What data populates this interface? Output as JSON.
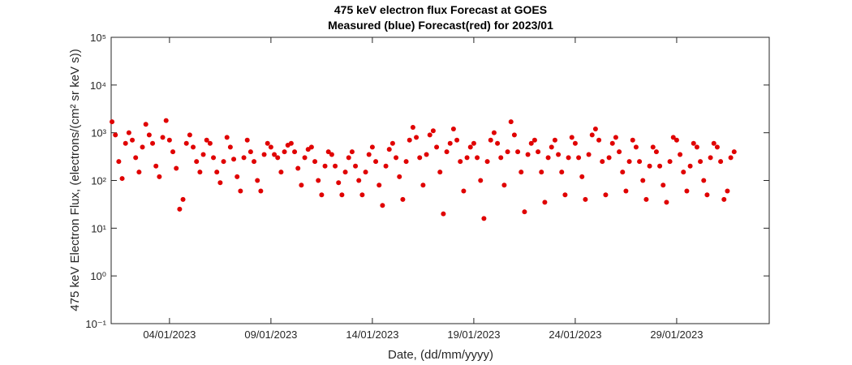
{
  "chart_data": {
    "type": "scatter",
    "title": "475 keV electron flux Forecast at GOES",
    "subtitle": "Measured (blue) Forecast(red) for 2023/01",
    "x_label": "Date, (dd/mm/yyyy)",
    "y_label": "475 keV Electron Flux, (electrons/(cm² sr keV s))",
    "log_y": true,
    "grid": false,
    "xlim": [
      "2023-01-01T03:00Z",
      "2023-02-02T13:30Z"
    ],
    "xticks": [
      {
        "value": "2023-01-04T00:00Z",
        "label": "04/01/2023"
      },
      {
        "value": "2023-01-09T00:00Z",
        "label": "09/01/2023"
      },
      {
        "value": "2023-01-14T00:00Z",
        "label": "14/01/2023"
      },
      {
        "value": "2023-01-19T00:00Z",
        "label": "19/01/2023"
      },
      {
        "value": "2023-01-24T00:00Z",
        "label": "24/01/2023"
      },
      {
        "value": "2023-01-29T00:00Z",
        "label": "29/01/2023"
      }
    ],
    "ylim": [
      0.1,
      100000
    ],
    "yticks": [
      {
        "value": 0.1,
        "label": "10⁻¹"
      },
      {
        "value": 1,
        "label": "10⁰"
      },
      {
        "value": 10,
        "label": "10¹"
      },
      {
        "value": 100,
        "label": "10²"
      },
      {
        "value": 1000,
        "label": "10³"
      },
      {
        "value": 10000,
        "label": "10⁴"
      },
      {
        "value": 100000,
        "label": "10⁵"
      }
    ],
    "series": [
      {
        "color": "#e00000",
        "x": [
          "2023-01-01T04:00Z",
          "2023-01-01T08:00Z",
          "2023-01-01T12:00Z",
          "2023-01-01T16:00Z",
          "2023-01-01T20:00Z",
          "2023-01-02T00:00Z",
          "2023-01-02T04:00Z",
          "2023-01-02T08:00Z",
          "2023-01-02T12:00Z",
          "2023-01-02T16:00Z",
          "2023-01-02T20:00Z",
          "2023-01-03T00:00Z",
          "2023-01-03T04:00Z",
          "2023-01-03T08:00Z",
          "2023-01-03T12:00Z",
          "2023-01-03T16:00Z",
          "2023-01-03T20:00Z",
          "2023-01-04T00:00Z",
          "2023-01-04T04:00Z",
          "2023-01-04T08:00Z",
          "2023-01-04T12:00Z",
          "2023-01-04T16:00Z",
          "2023-01-04T20:00Z",
          "2023-01-05T00:00Z",
          "2023-01-05T04:00Z",
          "2023-01-05T08:00Z",
          "2023-01-05T12:00Z",
          "2023-01-05T16:00Z",
          "2023-01-05T20:00Z",
          "2023-01-06T00:00Z",
          "2023-01-06T04:00Z",
          "2023-01-06T08:00Z",
          "2023-01-06T12:00Z",
          "2023-01-06T16:00Z",
          "2023-01-06T20:00Z",
          "2023-01-07T00:00Z",
          "2023-01-07T04:00Z",
          "2023-01-07T08:00Z",
          "2023-01-07T12:00Z",
          "2023-01-07T16:00Z",
          "2023-01-07T20:00Z",
          "2023-01-08T00:00Z",
          "2023-01-08T04:00Z",
          "2023-01-08T08:00Z",
          "2023-01-08T12:00Z",
          "2023-01-08T16:00Z",
          "2023-01-08T20:00Z",
          "2023-01-09T00:00Z",
          "2023-01-09T04:00Z",
          "2023-01-09T08:00Z",
          "2023-01-09T12:00Z",
          "2023-01-09T16:00Z",
          "2023-01-09T20:00Z",
          "2023-01-10T00:00Z",
          "2023-01-10T04:00Z",
          "2023-01-10T08:00Z",
          "2023-01-10T12:00Z",
          "2023-01-10T16:00Z",
          "2023-01-10T20:00Z",
          "2023-01-11T00:00Z",
          "2023-01-11T04:00Z",
          "2023-01-11T08:00Z",
          "2023-01-11T12:00Z",
          "2023-01-11T16:00Z",
          "2023-01-11T20:00Z",
          "2023-01-12T00:00Z",
          "2023-01-12T04:00Z",
          "2023-01-12T08:00Z",
          "2023-01-12T12:00Z",
          "2023-01-12T16:00Z",
          "2023-01-12T20:00Z",
          "2023-01-13T00:00Z",
          "2023-01-13T04:00Z",
          "2023-01-13T08:00Z",
          "2023-01-13T12:00Z",
          "2023-01-13T16:00Z",
          "2023-01-13T20:00Z",
          "2023-01-14T00:00Z",
          "2023-01-14T04:00Z",
          "2023-01-14T08:00Z",
          "2023-01-14T12:00Z",
          "2023-01-14T16:00Z",
          "2023-01-14T20:00Z",
          "2023-01-15T00:00Z",
          "2023-01-15T04:00Z",
          "2023-01-15T08:00Z",
          "2023-01-15T12:00Z",
          "2023-01-15T16:00Z",
          "2023-01-15T20:00Z",
          "2023-01-16T00:00Z",
          "2023-01-16T04:00Z",
          "2023-01-16T08:00Z",
          "2023-01-16T12:00Z",
          "2023-01-16T16:00Z",
          "2023-01-16T20:00Z",
          "2023-01-17T00:00Z",
          "2023-01-17T04:00Z",
          "2023-01-17T08:00Z",
          "2023-01-17T12:00Z",
          "2023-01-17T16:00Z",
          "2023-01-17T20:00Z",
          "2023-01-18T00:00Z",
          "2023-01-18T04:00Z",
          "2023-01-18T08:00Z",
          "2023-01-18T12:00Z",
          "2023-01-18T16:00Z",
          "2023-01-18T20:00Z",
          "2023-01-19T00:00Z",
          "2023-01-19T04:00Z",
          "2023-01-19T08:00Z",
          "2023-01-19T12:00Z",
          "2023-01-19T16:00Z",
          "2023-01-19T20:00Z",
          "2023-01-20T00:00Z",
          "2023-01-20T04:00Z",
          "2023-01-20T08:00Z",
          "2023-01-20T12:00Z",
          "2023-01-20T16:00Z",
          "2023-01-20T20:00Z",
          "2023-01-21T00:00Z",
          "2023-01-21T04:00Z",
          "2023-01-21T08:00Z",
          "2023-01-21T12:00Z",
          "2023-01-21T16:00Z",
          "2023-01-21T20:00Z",
          "2023-01-22T00:00Z",
          "2023-01-22T04:00Z",
          "2023-01-22T08:00Z",
          "2023-01-22T12:00Z",
          "2023-01-22T16:00Z",
          "2023-01-22T20:00Z",
          "2023-01-23T00:00Z",
          "2023-01-23T04:00Z",
          "2023-01-23T08:00Z",
          "2023-01-23T12:00Z",
          "2023-01-23T16:00Z",
          "2023-01-23T20:00Z",
          "2023-01-24T00:00Z",
          "2023-01-24T04:00Z",
          "2023-01-24T08:00Z",
          "2023-01-24T12:00Z",
          "2023-01-24T16:00Z",
          "2023-01-24T20:00Z",
          "2023-01-25T00:00Z",
          "2023-01-25T04:00Z",
          "2023-01-25T08:00Z",
          "2023-01-25T12:00Z",
          "2023-01-25T16:00Z",
          "2023-01-25T20:00Z",
          "2023-01-26T00:00Z",
          "2023-01-26T04:00Z",
          "2023-01-26T08:00Z",
          "2023-01-26T12:00Z",
          "2023-01-26T16:00Z",
          "2023-01-26T20:00Z",
          "2023-01-27T00:00Z",
          "2023-01-27T04:00Z",
          "2023-01-27T08:00Z",
          "2023-01-27T12:00Z",
          "2023-01-27T16:00Z",
          "2023-01-27T20:00Z",
          "2023-01-28T00:00Z",
          "2023-01-28T04:00Z",
          "2023-01-28T08:00Z",
          "2023-01-28T12:00Z",
          "2023-01-28T16:00Z",
          "2023-01-28T20:00Z",
          "2023-01-29T00:00Z",
          "2023-01-29T04:00Z",
          "2023-01-29T08:00Z",
          "2023-01-29T12:00Z",
          "2023-01-29T16:00Z",
          "2023-01-29T20:00Z",
          "2023-01-30T00:00Z",
          "2023-01-30T04:00Z",
          "2023-01-30T08:00Z",
          "2023-01-30T12:00Z",
          "2023-01-30T16:00Z",
          "2023-01-30T20:00Z",
          "2023-01-31T00:00Z",
          "2023-01-31T04:00Z",
          "2023-01-31T08:00Z",
          "2023-01-31T12:00Z",
          "2023-01-31T16:00Z",
          "2023-01-31T20:00Z"
        ],
        "values": [
          1700,
          900,
          250,
          110,
          600,
          1000,
          700,
          300,
          150,
          500,
          1500,
          900,
          600,
          200,
          120,
          800,
          1800,
          700,
          400,
          180,
          25,
          40,
          600,
          900,
          500,
          250,
          150,
          350,
          700,
          600,
          300,
          150,
          90,
          250,
          800,
          500,
          280,
          120,
          60,
          300,
          700,
          400,
          250,
          100,
          60,
          350,
          600,
          500,
          350,
          300,
          150,
          400,
          550,
          600,
          400,
          180,
          80,
          300,
          450,
          500,
          250,
          100,
          50,
          200,
          400,
          350,
          200,
          90,
          50,
          150,
          300,
          400,
          200,
          100,
          50,
          150,
          350,
          500,
          250,
          80,
          30,
          200,
          450,
          600,
          300,
          120,
          40,
          250,
          700,
          1300,
          800,
          300,
          80,
          350,
          900,
          1100,
          500,
          150,
          20,
          400,
          600,
          1200,
          700,
          250,
          60,
          300,
          500,
          600,
          300,
          100,
          16,
          250,
          700,
          1000,
          600,
          300,
          80,
          400,
          1700,
          900,
          400,
          150,
          22,
          350,
          600,
          700,
          400,
          150,
          35,
          300,
          500,
          700,
          350,
          150,
          50,
          300,
          800,
          600,
          300,
          120,
          40,
          350,
          900,
          1200,
          700,
          250,
          50,
          300,
          600,
          800,
          400,
          150,
          60,
          250,
          700,
          500,
          250,
          100,
          40,
          200,
          500,
          400,
          200,
          80,
          35,
          250,
          800,
          700,
          350,
          150,
          60,
          200,
          600,
          500,
          250,
          100,
          50,
          300,
          600,
          500,
          250,
          40,
          60,
          300,
          400
        ]
      }
    ]
  }
}
